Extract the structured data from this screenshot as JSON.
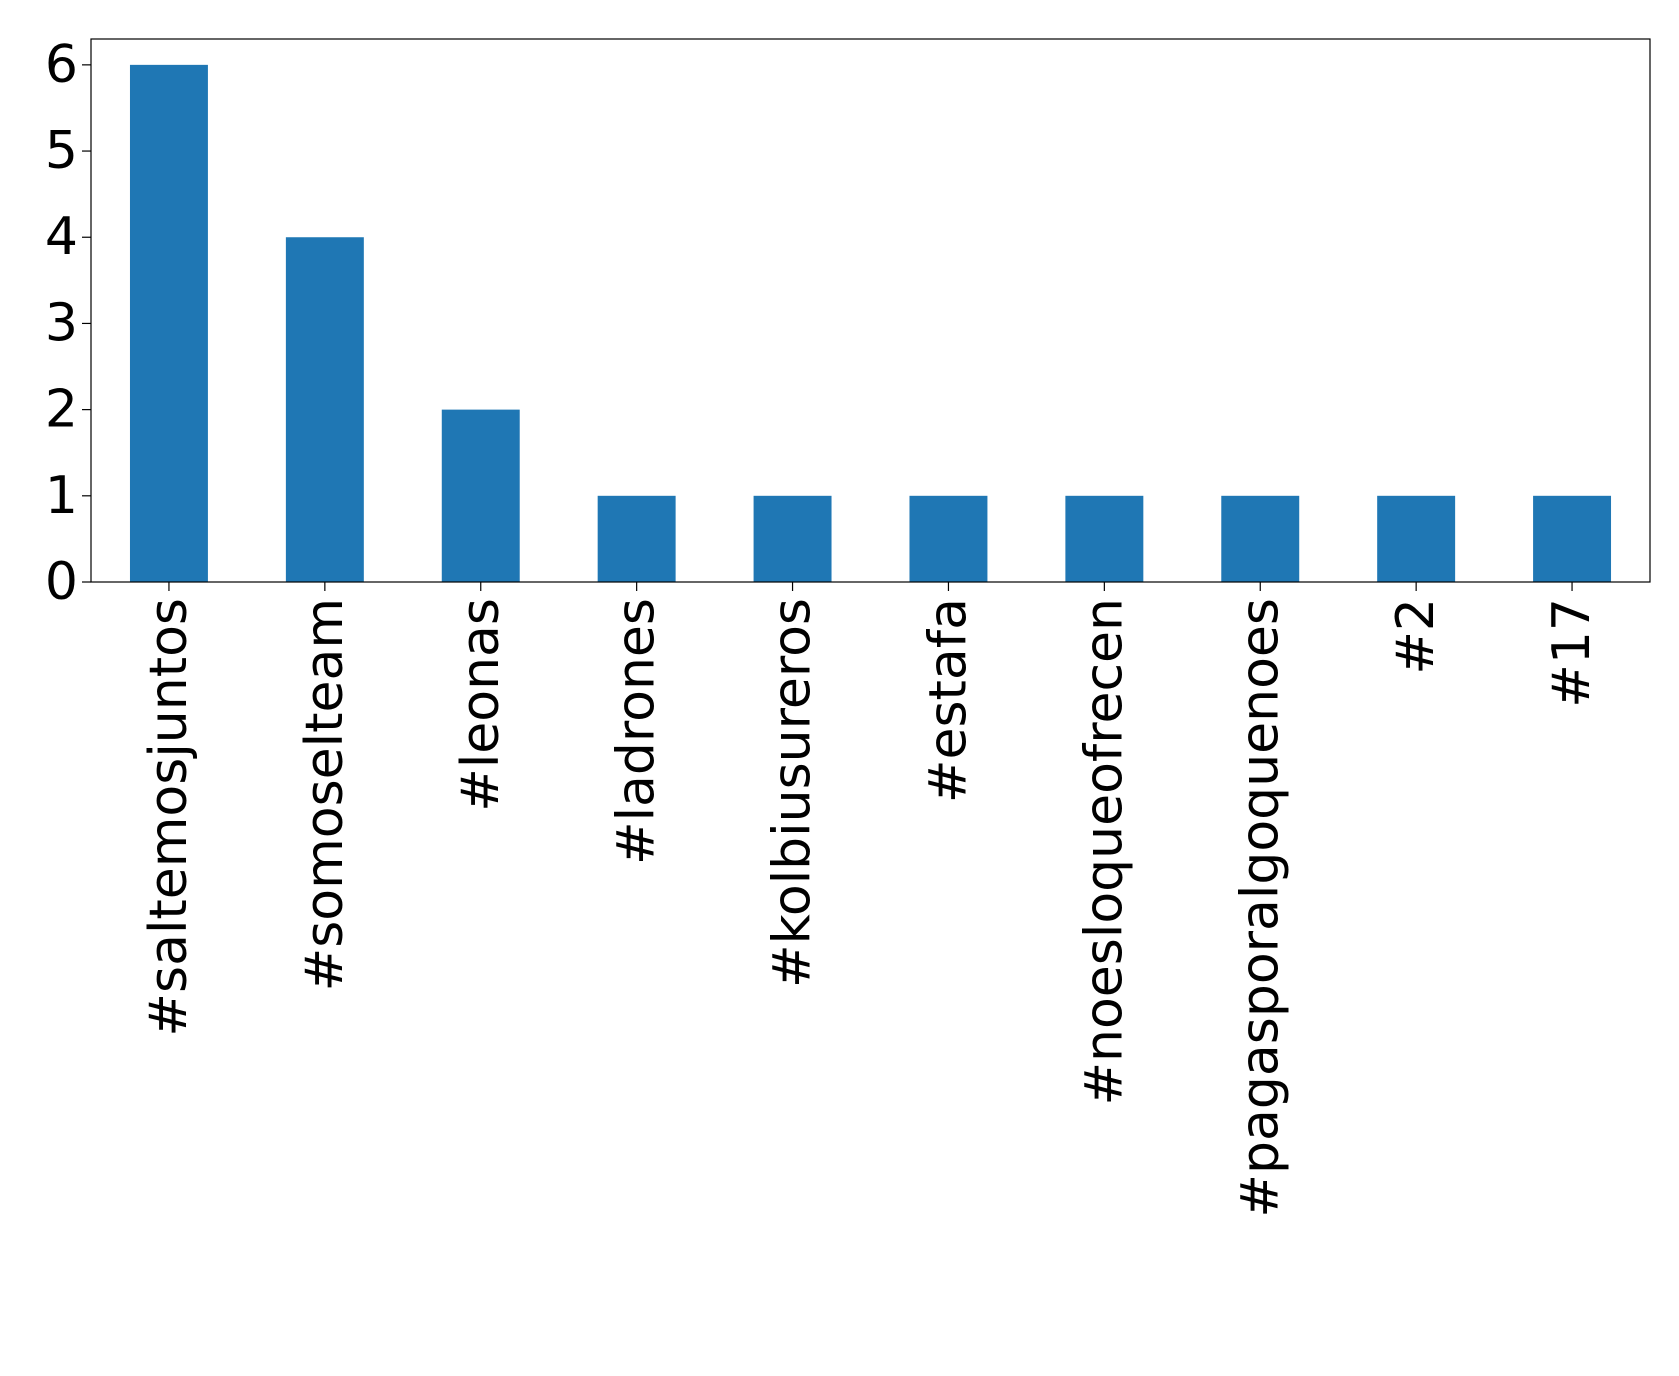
{
  "chart_data": {
    "type": "bar",
    "title": "",
    "xlabel": "",
    "ylabel": "",
    "categories": [
      "#saltemosjuntos",
      "#somoselteam",
      "#leonas",
      "#ladrones",
      "#kolbiusureros",
      "#estafa",
      "#noesloqueofrecen",
      "#pagasporalgoquenoes",
      "#2",
      "#17"
    ],
    "values": [
      6,
      4,
      2,
      1,
      1,
      1,
      1,
      1,
      1,
      1
    ],
    "ylim": [
      0,
      6.3
    ],
    "yticks": [
      0,
      1,
      2,
      3,
      4,
      5,
      6
    ],
    "bar_color": "#1f77b4",
    "grid": false,
    "legend": "none"
  }
}
